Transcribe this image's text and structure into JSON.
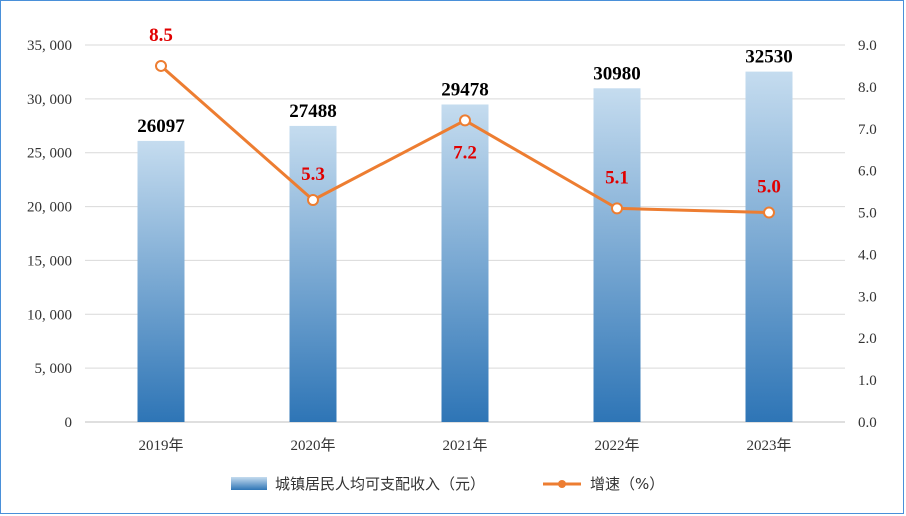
{
  "chart_data": {
    "type": "bar+line",
    "categories": [
      "2019年",
      "2020年",
      "2021年",
      "2022年",
      "2023年"
    ],
    "series": [
      {
        "name": "城镇居民人均可支配收入（元）",
        "type": "bar",
        "axis": "left",
        "values": [
          26097,
          27488,
          29478,
          30980,
          32530
        ],
        "labels": [
          "26097",
          "27488",
          "29478",
          "30980",
          "32530"
        ]
      },
      {
        "name": "增速（%）",
        "type": "line",
        "axis": "right",
        "values": [
          8.5,
          5.3,
          7.2,
          5.1,
          5.0
        ],
        "labels": [
          "8.5",
          "5.3",
          "7.2",
          "5.1",
          "5.0"
        ]
      }
    ],
    "y_left": {
      "ylim": [
        0,
        35000
      ],
      "ticks": [
        0,
        5000,
        10000,
        15000,
        20000,
        25000,
        30000,
        35000
      ],
      "tick_labels": [
        "0",
        "5, 000",
        "10, 000",
        "15, 000",
        "20, 000",
        "25, 000",
        "30, 000",
        "35, 000"
      ]
    },
    "y_right": {
      "ylim": [
        0,
        9
      ],
      "ticks": [
        0,
        1,
        2,
        3,
        4,
        5,
        6,
        7,
        8,
        9
      ],
      "tick_labels": [
        "0.0",
        "1.0",
        "2.0",
        "3.0",
        "4.0",
        "5.0",
        "6.0",
        "7.0",
        "8.0",
        "9.0"
      ]
    },
    "grid": true,
    "legend_position": "bottom",
    "colors": {
      "bar_top": "#c5dcef",
      "bar_bottom": "#2e75b6",
      "line": "#ed7d31",
      "bar_label": "#000000",
      "line_label": "#e00000",
      "grid": "#d9d9d9",
      "frame": "#4a90d9"
    }
  }
}
